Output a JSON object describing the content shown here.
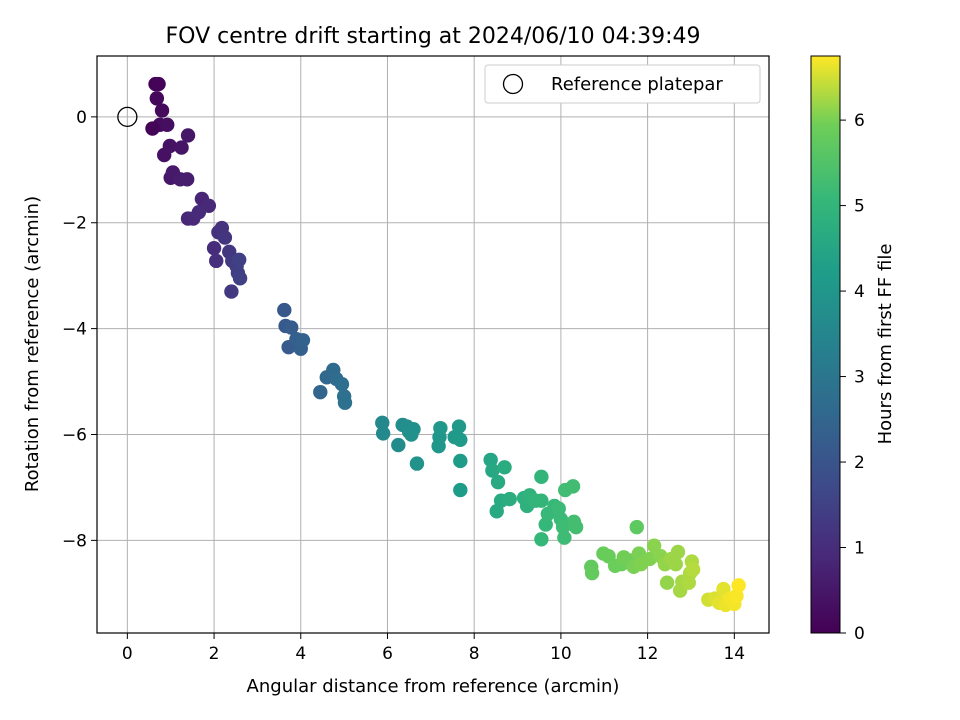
{
  "chart_data": {
    "type": "scatter",
    "title": "FOV centre drift starting at 2024/06/10 04:39:49",
    "xlabel": "Angular distance from reference (arcmin)",
    "ylabel": "Rotation from reference (arcmin)",
    "xlim": [
      -0.7,
      14.8
    ],
    "ylim": [
      -9.75,
      1.15
    ],
    "xticks": [
      0,
      2,
      4,
      6,
      8,
      10,
      12,
      14
    ],
    "yticks": [
      0,
      -2,
      -4,
      -6,
      -8
    ],
    "xtick_labels": [
      "0",
      "2",
      "4",
      "6",
      "8",
      "10",
      "12",
      "14"
    ],
    "ytick_labels": [
      "0",
      "−2",
      "−4",
      "−6",
      "−8"
    ],
    "grid": true,
    "legend": {
      "position": "top-right",
      "entries": [
        {
          "label": "Reference platepar",
          "marker": "open-circle"
        }
      ]
    },
    "reference_point": {
      "x": 0,
      "y": 0
    },
    "colorbar": {
      "label": "Hours from first FF file",
      "min": 0,
      "max": 6.75,
      "ticks": [
        0,
        1,
        2,
        3,
        4,
        5,
        6
      ],
      "tick_labels": [
        "0",
        "1",
        "2",
        "3",
        "4",
        "5",
        "6"
      ],
      "colormap": "viridis"
    },
    "series": [
      {
        "marker": "filled-circle",
        "points": [
          {
            "x": 0.65,
            "y": 0.62,
            "c": 0.05
          },
          {
            "x": 0.72,
            "y": 0.62,
            "c": 0.1
          },
          {
            "x": 0.68,
            "y": 0.35,
            "c": 0.15
          },
          {
            "x": 0.8,
            "y": 0.12,
            "c": 0.2
          },
          {
            "x": 0.75,
            "y": -0.15,
            "c": 0.25
          },
          {
            "x": 0.92,
            "y": -0.15,
            "c": 0.3
          },
          {
            "x": 0.58,
            "y": -0.22,
            "c": 0.08
          },
          {
            "x": 0.85,
            "y": -0.72,
            "c": 0.35
          },
          {
            "x": 0.98,
            "y": -0.55,
            "c": 0.4
          },
          {
            "x": 1.25,
            "y": -0.58,
            "c": 0.45
          },
          {
            "x": 1.4,
            "y": -0.35,
            "c": 0.5
          },
          {
            "x": 1.0,
            "y": -1.15,
            "c": 0.5
          },
          {
            "x": 1.05,
            "y": -1.05,
            "c": 0.55
          },
          {
            "x": 1.22,
            "y": -1.18,
            "c": 0.6
          },
          {
            "x": 1.38,
            "y": -1.18,
            "c": 0.62
          },
          {
            "x": 1.4,
            "y": -1.92,
            "c": 0.85
          },
          {
            "x": 1.52,
            "y": -1.92,
            "c": 0.9
          },
          {
            "x": 1.65,
            "y": -1.8,
            "c": 0.95
          },
          {
            "x": 1.72,
            "y": -1.55,
            "c": 0.8
          },
          {
            "x": 1.88,
            "y": -1.68,
            "c": 0.9
          },
          {
            "x": 2.0,
            "y": -2.48,
            "c": 1.0
          },
          {
            "x": 2.05,
            "y": -2.72,
            "c": 1.05
          },
          {
            "x": 2.1,
            "y": -2.18,
            "c": 1.1
          },
          {
            "x": 2.18,
            "y": -2.1,
            "c": 1.15
          },
          {
            "x": 2.25,
            "y": -2.28,
            "c": 1.2
          },
          {
            "x": 2.35,
            "y": -2.55,
            "c": 1.25
          },
          {
            "x": 2.42,
            "y": -2.72,
            "c": 1.3
          },
          {
            "x": 2.4,
            "y": -3.3,
            "c": 1.3
          },
          {
            "x": 2.52,
            "y": -2.82,
            "c": 1.4
          },
          {
            "x": 2.55,
            "y": -2.95,
            "c": 1.45
          },
          {
            "x": 2.6,
            "y": -3.05,
            "c": 1.5
          },
          {
            "x": 2.58,
            "y": -2.7,
            "c": 1.5
          },
          {
            "x": 3.62,
            "y": -3.65,
            "c": 2.1
          },
          {
            "x": 3.65,
            "y": -3.95,
            "c": 2.15
          },
          {
            "x": 3.72,
            "y": -4.35,
            "c": 2.2
          },
          {
            "x": 3.78,
            "y": -3.98,
            "c": 2.25
          },
          {
            "x": 3.9,
            "y": -4.2,
            "c": 2.3
          },
          {
            "x": 4.0,
            "y": -4.38,
            "c": 2.35
          },
          {
            "x": 4.05,
            "y": -4.22,
            "c": 2.4
          },
          {
            "x": 4.45,
            "y": -5.2,
            "c": 2.5
          },
          {
            "x": 4.6,
            "y": -4.92,
            "c": 2.6
          },
          {
            "x": 4.75,
            "y": -4.78,
            "c": 2.65
          },
          {
            "x": 4.82,
            "y": -4.95,
            "c": 2.7
          },
          {
            "x": 4.95,
            "y": -5.05,
            "c": 2.75
          },
          {
            "x": 5.0,
            "y": -5.28,
            "c": 2.8
          },
          {
            "x": 5.02,
            "y": -5.4,
            "c": 2.85
          },
          {
            "x": 5.88,
            "y": -5.78,
            "c": 3.55
          },
          {
            "x": 5.9,
            "y": -5.98,
            "c": 3.6
          },
          {
            "x": 6.25,
            "y": -6.2,
            "c": 3.65
          },
          {
            "x": 6.35,
            "y": -5.82,
            "c": 3.7
          },
          {
            "x": 6.45,
            "y": -5.85,
            "c": 3.75
          },
          {
            "x": 6.5,
            "y": -5.95,
            "c": 3.8
          },
          {
            "x": 6.55,
            "y": -6.0,
            "c": 3.85
          },
          {
            "x": 6.6,
            "y": -5.9,
            "c": 3.85
          },
          {
            "x": 6.68,
            "y": -6.55,
            "c": 3.9
          },
          {
            "x": 7.18,
            "y": -6.22,
            "c": 4.0
          },
          {
            "x": 7.2,
            "y": -6.05,
            "c": 4.0
          },
          {
            "x": 7.22,
            "y": -5.88,
            "c": 4.05
          },
          {
            "x": 7.55,
            "y": -6.05,
            "c": 4.1
          },
          {
            "x": 7.65,
            "y": -5.85,
            "c": 4.1
          },
          {
            "x": 7.68,
            "y": -6.1,
            "c": 4.15
          },
          {
            "x": 7.68,
            "y": -6.5,
            "c": 4.2
          },
          {
            "x": 7.68,
            "y": -7.05,
            "c": 4.2
          },
          {
            "x": 8.38,
            "y": -6.48,
            "c": 4.5
          },
          {
            "x": 8.42,
            "y": -6.68,
            "c": 4.55
          },
          {
            "x": 8.52,
            "y": -7.45,
            "c": 4.6
          },
          {
            "x": 8.55,
            "y": -6.9,
            "c": 4.6
          },
          {
            "x": 8.62,
            "y": -7.25,
            "c": 4.65
          },
          {
            "x": 8.7,
            "y": -6.62,
            "c": 4.7
          },
          {
            "x": 8.82,
            "y": -7.22,
            "c": 4.75
          },
          {
            "x": 9.15,
            "y": -7.2,
            "c": 4.8
          },
          {
            "x": 9.22,
            "y": -7.35,
            "c": 4.85
          },
          {
            "x": 9.28,
            "y": -7.15,
            "c": 4.9
          },
          {
            "x": 9.35,
            "y": -7.25,
            "c": 4.9
          },
          {
            "x": 9.42,
            "y": -7.25,
            "c": 4.95
          },
          {
            "x": 9.55,
            "y": -7.25,
            "c": 5.0
          },
          {
            "x": 9.55,
            "y": -6.8,
            "c": 5.0
          },
          {
            "x": 9.55,
            "y": -7.98,
            "c": 5.05
          },
          {
            "x": 9.65,
            "y": -7.7,
            "c": 5.05
          },
          {
            "x": 9.7,
            "y": -7.5,
            "c": 5.1
          },
          {
            "x": 9.85,
            "y": -7.35,
            "c": 5.1
          },
          {
            "x": 9.95,
            "y": -7.4,
            "c": 5.15
          },
          {
            "x": 10.0,
            "y": -7.6,
            "c": 5.15
          },
          {
            "x": 10.05,
            "y": -7.75,
            "c": 5.2
          },
          {
            "x": 10.08,
            "y": -7.95,
            "c": 5.2
          },
          {
            "x": 10.1,
            "y": -7.05,
            "c": 5.25
          },
          {
            "x": 10.28,
            "y": -6.98,
            "c": 5.25
          },
          {
            "x": 10.3,
            "y": -7.65,
            "c": 5.3
          },
          {
            "x": 10.35,
            "y": -7.75,
            "c": 5.3
          },
          {
            "x": 10.7,
            "y": -8.5,
            "c": 5.75
          },
          {
            "x": 10.72,
            "y": -8.62,
            "c": 5.8
          },
          {
            "x": 10.98,
            "y": -8.25,
            "c": 5.85
          },
          {
            "x": 11.1,
            "y": -8.3,
            "c": 5.85
          },
          {
            "x": 11.25,
            "y": -8.48,
            "c": 5.9
          },
          {
            "x": 11.4,
            "y": -8.45,
            "c": 5.9
          },
          {
            "x": 11.45,
            "y": -8.32,
            "c": 5.95
          },
          {
            "x": 11.6,
            "y": -8.38,
            "c": 5.95
          },
          {
            "x": 11.68,
            "y": -8.5,
            "c": 6.0
          },
          {
            "x": 11.75,
            "y": -7.75,
            "c": 5.7
          },
          {
            "x": 11.8,
            "y": -8.25,
            "c": 6.0
          },
          {
            "x": 11.85,
            "y": -8.45,
            "c": 6.05
          },
          {
            "x": 12.05,
            "y": -8.35,
            "c": 6.05
          },
          {
            "x": 12.15,
            "y": -8.1,
            "c": 6.1
          },
          {
            "x": 12.3,
            "y": -8.3,
            "c": 6.1
          },
          {
            "x": 12.4,
            "y": -8.45,
            "c": 6.15
          },
          {
            "x": 12.45,
            "y": -8.8,
            "c": 6.15
          },
          {
            "x": 12.55,
            "y": -8.35,
            "c": 6.2
          },
          {
            "x": 12.65,
            "y": -8.45,
            "c": 6.2
          },
          {
            "x": 12.7,
            "y": -8.22,
            "c": 6.2
          },
          {
            "x": 12.75,
            "y": -8.95,
            "c": 6.25
          },
          {
            "x": 12.8,
            "y": -8.78,
            "c": 6.25
          },
          {
            "x": 12.95,
            "y": -8.8,
            "c": 6.3
          },
          {
            "x": 12.98,
            "y": -8.62,
            "c": 6.3
          },
          {
            "x": 13.02,
            "y": -8.4,
            "c": 6.3
          },
          {
            "x": 13.05,
            "y": -8.55,
            "c": 6.35
          },
          {
            "x": 13.4,
            "y": -9.12,
            "c": 6.5
          },
          {
            "x": 13.55,
            "y": -9.1,
            "c": 6.55
          },
          {
            "x": 13.65,
            "y": -9.18,
            "c": 6.6
          },
          {
            "x": 13.75,
            "y": -8.92,
            "c": 6.6
          },
          {
            "x": 13.8,
            "y": -9.22,
            "c": 6.65
          },
          {
            "x": 13.9,
            "y": -9.1,
            "c": 6.7
          },
          {
            "x": 14.0,
            "y": -9.2,
            "c": 6.7
          },
          {
            "x": 14.05,
            "y": -9.05,
            "c": 6.72
          },
          {
            "x": 14.1,
            "y": -8.85,
            "c": 6.75
          }
        ]
      }
    ]
  }
}
